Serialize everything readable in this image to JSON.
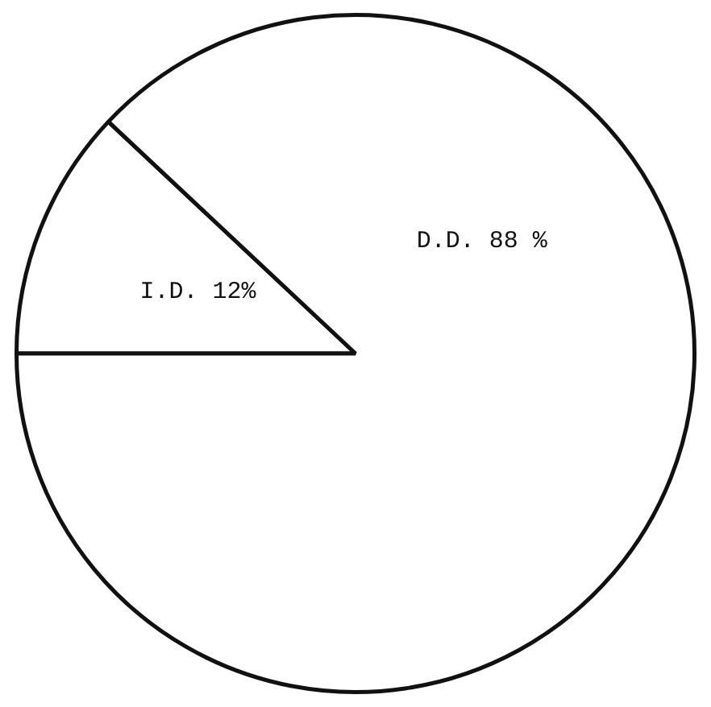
{
  "chart_data": {
    "type": "pie",
    "categories": [
      "I.D.",
      "D.D."
    ],
    "values": [
      12,
      88
    ],
    "colors": [
      "#ffffff",
      "#ffffff"
    ],
    "value_labels": [
      "12%",
      "88 %"
    ]
  }
}
